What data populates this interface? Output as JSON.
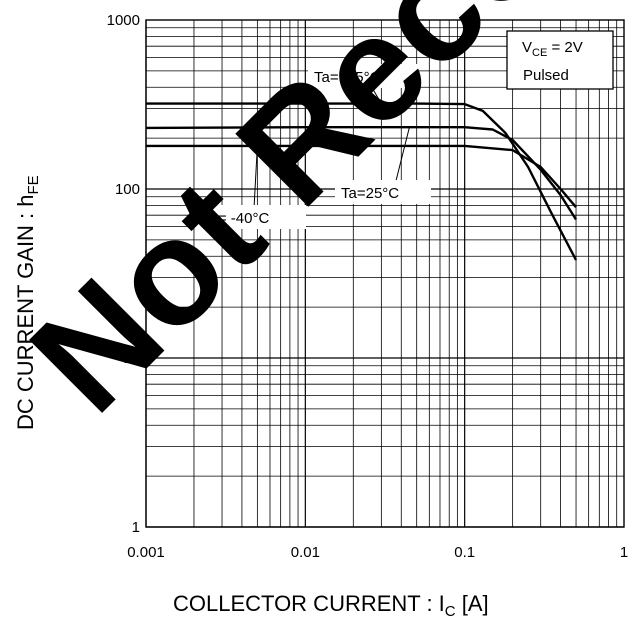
{
  "chart_data": {
    "type": "line",
    "xscale": "log",
    "yscale": "log",
    "xlim": [
      0.001,
      1
    ],
    "ylim": [
      1,
      1000
    ],
    "xticks": [
      "0.001",
      "0.01",
      "0.1",
      "1"
    ],
    "yticks": [
      "1",
      "10",
      "100",
      "1000"
    ],
    "xlabel": "COLLECTOR CURRENT : I",
    "xlabel_sub": "C",
    "xlabel_tail": " [A]",
    "ylabel": "DC CURRENT GAIN : h",
    "ylabel_sub": "FE",
    "grid": true,
    "conditions": {
      "vce_main": "V",
      "vce_sub": "CE",
      "vce_value": " = 2V",
      "mode": "Pulsed"
    },
    "series": [
      {
        "name": "Ta=125°C",
        "x": [
          0.001,
          0.01,
          0.05,
          0.1,
          0.13,
          0.18,
          0.25,
          0.35,
          0.5
        ],
        "y": [
          320,
          320,
          320,
          318,
          290,
          215,
          135,
          72,
          38
        ]
      },
      {
        "name": "Ta=25°C",
        "x": [
          0.001,
          0.01,
          0.1,
          0.15,
          0.2,
          0.3,
          0.4,
          0.5
        ],
        "y": [
          230,
          232,
          232,
          225,
          195,
          130,
          92,
          66
        ]
      },
      {
        "name": "Ta= -40°C",
        "x": [
          0.001,
          0.01,
          0.1,
          0.2,
          0.3,
          0.4,
          0.5
        ],
        "y": [
          180,
          180,
          180,
          170,
          135,
          100,
          78
        ]
      }
    ],
    "annotations": [
      {
        "text": "Ta=125°C",
        "series": 0,
        "at_x": 0.03
      },
      {
        "text": "Ta=25°C",
        "series": 1,
        "at_x": 0.045
      },
      {
        "text": "Ta= -40°C",
        "series": 2,
        "at_x": 0.005
      }
    ],
    "watermark": "Not Recommended for New"
  }
}
